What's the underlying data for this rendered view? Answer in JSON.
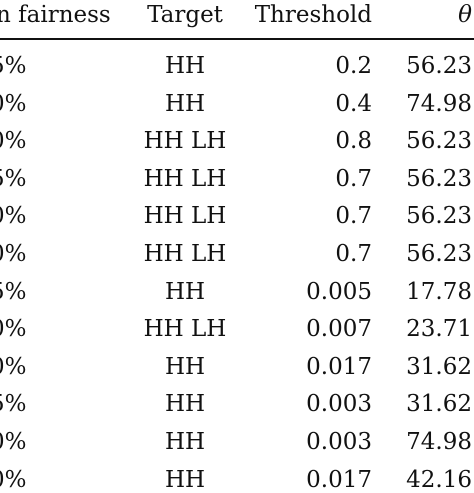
{
  "table": {
    "headers": [
      "n fairness",
      "Target",
      "Threshold",
      "θ"
    ],
    "rows": [
      {
        "fairness": "5%",
        "target": "HH",
        "threshold": "0.2",
        "theta": "56.23"
      },
      {
        "fairness": "0%",
        "target": "HH",
        "threshold": "0.4",
        "theta": "74.98"
      },
      {
        "fairness": "0%",
        "target": "HH LH",
        "threshold": "0.8",
        "theta": "56.23"
      },
      {
        "fairness": "5%",
        "target": "HH LH",
        "threshold": "0.7",
        "theta": "56.23"
      },
      {
        "fairness": "0%",
        "target": "HH LH",
        "threshold": "0.7",
        "theta": "56.23"
      },
      {
        "fairness": "0%",
        "target": "HH LH",
        "threshold": "0.7",
        "theta": "56.23"
      },
      {
        "fairness": "5%",
        "target": "HH",
        "threshold": "0.005",
        "theta": "17.78"
      },
      {
        "fairness": "0%",
        "target": "HH LH",
        "threshold": "0.007",
        "theta": "23.71"
      },
      {
        "fairness": "0%",
        "target": "HH",
        "threshold": "0.017",
        "theta": "31.62"
      },
      {
        "fairness": "5%",
        "target": "HH",
        "threshold": "0.003",
        "theta": "31.62"
      },
      {
        "fairness": "0%",
        "target": "HH",
        "threshold": "0.003",
        "theta": "74.98"
      },
      {
        "fairness": "0%",
        "target": "HH",
        "threshold": "0.017",
        "theta": "42.16"
      }
    ]
  }
}
